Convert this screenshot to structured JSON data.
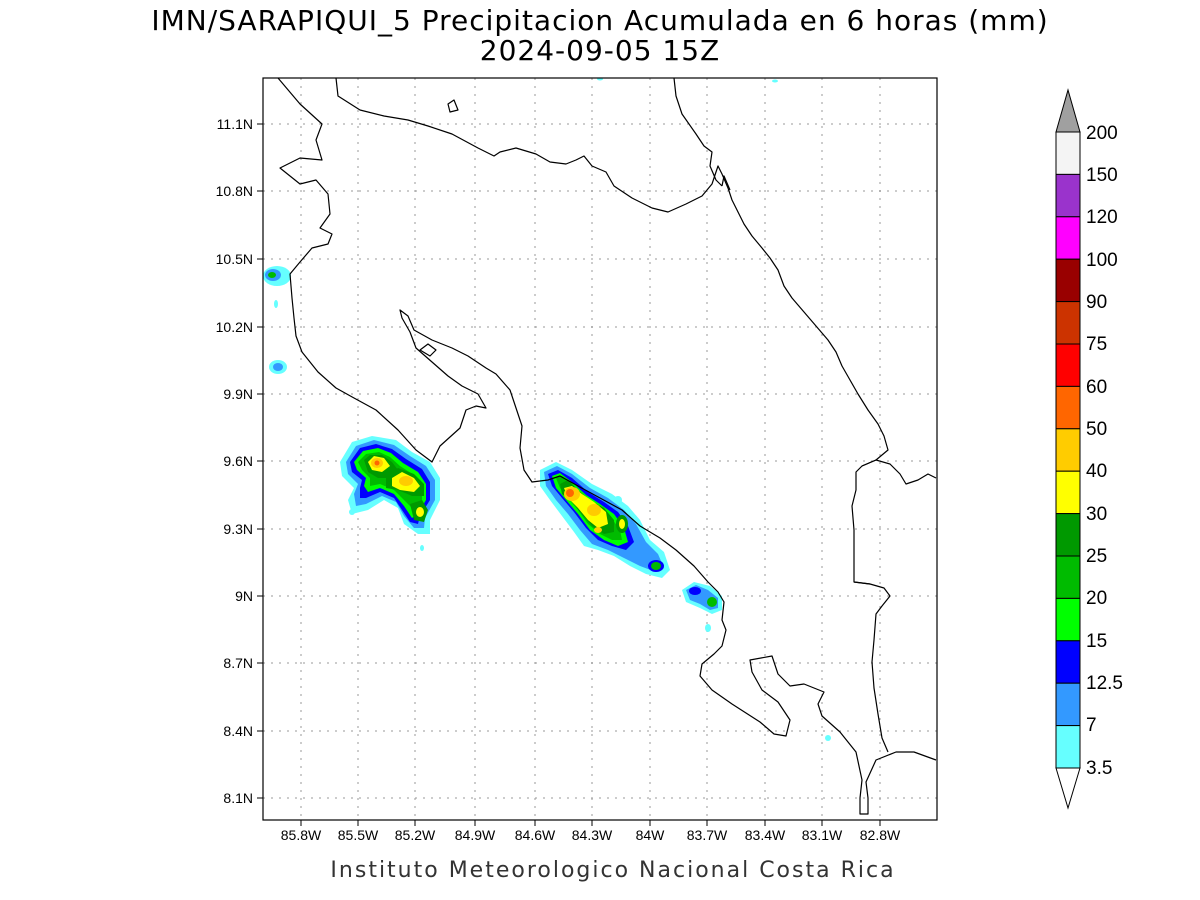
{
  "title": {
    "line1": "IMN/SARAPIQUI_5 Precipitacion Acumulada en 6 horas (mm)",
    "line2": "2024-09-05 15Z"
  },
  "axes": {
    "x_ticks": [
      "85.8W",
      "85.5W",
      "85.2W",
      "84.9W",
      "84.6W",
      "84.3W",
      "84W",
      "83.7W",
      "83.4W",
      "83.1W",
      "82.8W"
    ],
    "y_ticks": [
      "11.1N",
      "10.8N",
      "10.5N",
      "10.2N",
      "9.9N",
      "9.6N",
      "9.3N",
      "9N",
      "8.7N",
      "8.4N",
      "8.1N"
    ]
  },
  "colorbar": {
    "labels": [
      "200",
      "150",
      "120",
      "100",
      "90",
      "75",
      "60",
      "50",
      "40",
      "30",
      "25",
      "20",
      "15",
      "12.5",
      "7",
      "3.5"
    ],
    "colors": [
      "#f4f4f4",
      "#9a33cc",
      "#ff00ff",
      "#990000",
      "#cc3300",
      "#ff0000",
      "#ff6600",
      "#ffcc00",
      "#ffff00",
      "#009900",
      "#00bb00",
      "#00ff00",
      "#0000ff",
      "#3399ff",
      "#66ffff"
    ],
    "over_color": "#a0a0a0",
    "under_color": "#ffffff"
  },
  "footer": "Instituto Meteorologico Nacional Costa Rica"
}
